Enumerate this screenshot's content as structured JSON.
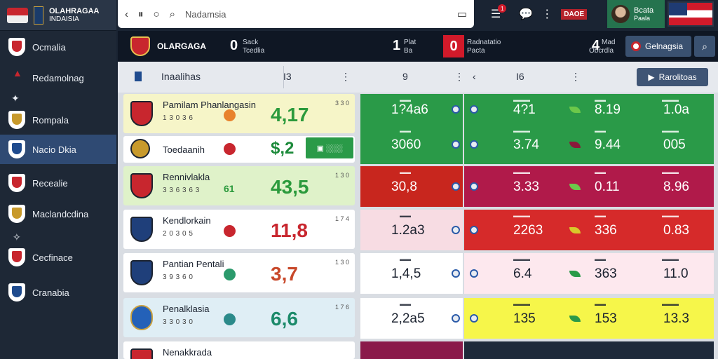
{
  "brand": {
    "title": "OLAHRAGAA",
    "subtitle": "INDAISIA"
  },
  "sidebar": {
    "items": [
      {
        "label": "Ocmalia",
        "active": false
      },
      {
        "label": "Redamolnag",
        "active": false
      },
      {
        "label": "Rompala",
        "active": false
      },
      {
        "label": "Nacio Dkia",
        "active": true
      },
      {
        "label": "Recealie",
        "active": false
      },
      {
        "label": "Maclandcdina",
        "active": false
      },
      {
        "label": "Cecfinace",
        "active": false
      },
      {
        "label": "Cranabia",
        "active": false
      }
    ]
  },
  "search": {
    "text": "Nadamsia"
  },
  "topbar": {
    "notif_count": "1",
    "brand_tag": "DAOE",
    "user_name": "Bcata",
    "user_sub": "Paala"
  },
  "matchbar": {
    "team_name": "OLARGAGA",
    "score_left": "0",
    "score_left_label_1": "Sack",
    "score_left_label_2": "Tcedlia",
    "score_mid": "1",
    "score_mid_label_1": "Plat",
    "score_mid_label_2": "Ba",
    "score_red": "0",
    "score_right_label_1": "Radnatatio",
    "score_right_label_2": "Pacta",
    "score_far": "4",
    "score_far_label_1": "Mad",
    "score_far_label_2": "Obcrdla",
    "button_label": "Gelnagsia"
  },
  "table_header": {
    "title": "Inaalihas",
    "col_a": "I3",
    "col_b": "9",
    "col_c": "I6",
    "button_label": "Rarolitoas"
  },
  "cards": [
    {
      "name": "Pamilam Phanlangasin",
      "sub": "1 3 0 3 6",
      "big": "4,17",
      "corner": "3 3 0",
      "bg": "#f6f5c8",
      "big_color": "#2b9a3c",
      "icon_color": "#e8822c",
      "crest": "red"
    },
    {
      "name": "Toedaanih",
      "sub": "",
      "big": "$,2",
      "corner": "",
      "bg": "#ffffff",
      "big_color": "#1c8a3a",
      "icon_color": "#c8262e",
      "crest": "gold",
      "green_btn": "▣ ░░░"
    },
    {
      "name": "Rennivlakla",
      "sub": "3 3 6 3 6 3",
      "big": "43,5",
      "corner": "1 3 0",
      "bg": "#dff2c9",
      "big_color": "#2b9a3c",
      "icon_color": "#2b9a3c",
      "icon_text": "61",
      "crest": "red"
    },
    {
      "name": "Kendlorkain",
      "sub": "2 0 3 0 5",
      "big": "11,8",
      "corner": "1 7 4",
      "bg": "#ffffff",
      "big_color": "#c8262e",
      "icon_color": "#c8262e",
      "crest": "blue"
    },
    {
      "name": "Pantian Pentali",
      "sub": "3 9 3 6 0",
      "big": "3,7",
      "corner": "1 3 0",
      "bg": "#ffffff",
      "big_color": "#c8482a",
      "icon_color": "#2b9a6c",
      "crest": "blue"
    },
    {
      "name": "Penalklasia",
      "sub": "3 3 0 3 0",
      "big": "6,6",
      "corner": "1 7 6",
      "bg": "#dfeef5",
      "big_color": "#1c8a6a",
      "icon_color": "#2b8a8a",
      "crest": "circle"
    },
    {
      "name": "Nenakkrada",
      "sub": "",
      "big": "",
      "corner": "",
      "bg": "#ffffff",
      "big_color": "#c8262e",
      "icon_color": "#c8262e",
      "crest": "red"
    }
  ],
  "odds_rows": [
    {
      "bg_a": "#2a9a48",
      "bg_b": "#2a9a48",
      "a": "1?4a6",
      "b": "4?1",
      "c": "8.19",
      "d": "1.0a",
      "leaf": "#6cc84a"
    },
    {
      "bg_a": "#2a9a48",
      "bg_b": "#2a9a48",
      "a": "3060",
      "b": "3.74",
      "c": "9.44",
      "d": "005",
      "leaf": "#8a1a3a"
    },
    {
      "bg_a": "#c8261e",
      "bg_b": "#b01a4a",
      "a": "30,8",
      "b": "3.33",
      "c": "0.11",
      "d": "8.96",
      "leaf": "#6cc84a"
    },
    {
      "bg_a": "#f7dce3",
      "bg_b": "#d62a2a",
      "a": "1.2a3",
      "b": "2263",
      "c": "336",
      "d": "0.83",
      "leaf": "#d8c82a",
      "dark_a": true
    },
    {
      "bg_a": "#ffffff",
      "bg_b": "#fde8ee",
      "a": "1,4,5",
      "b": "6.4",
      "c": "363",
      "d": "11.0",
      "leaf": "#2a9a48",
      "dark_a": true,
      "dark_b": true
    },
    {
      "bg_a": "#ffffff",
      "bg_b": "#f6f64a",
      "a": "2,2a5",
      "b": "135",
      "c": "153",
      "d": "13.3",
      "leaf": "#2a9a48",
      "dark_a": true,
      "dark_b": true
    }
  ]
}
